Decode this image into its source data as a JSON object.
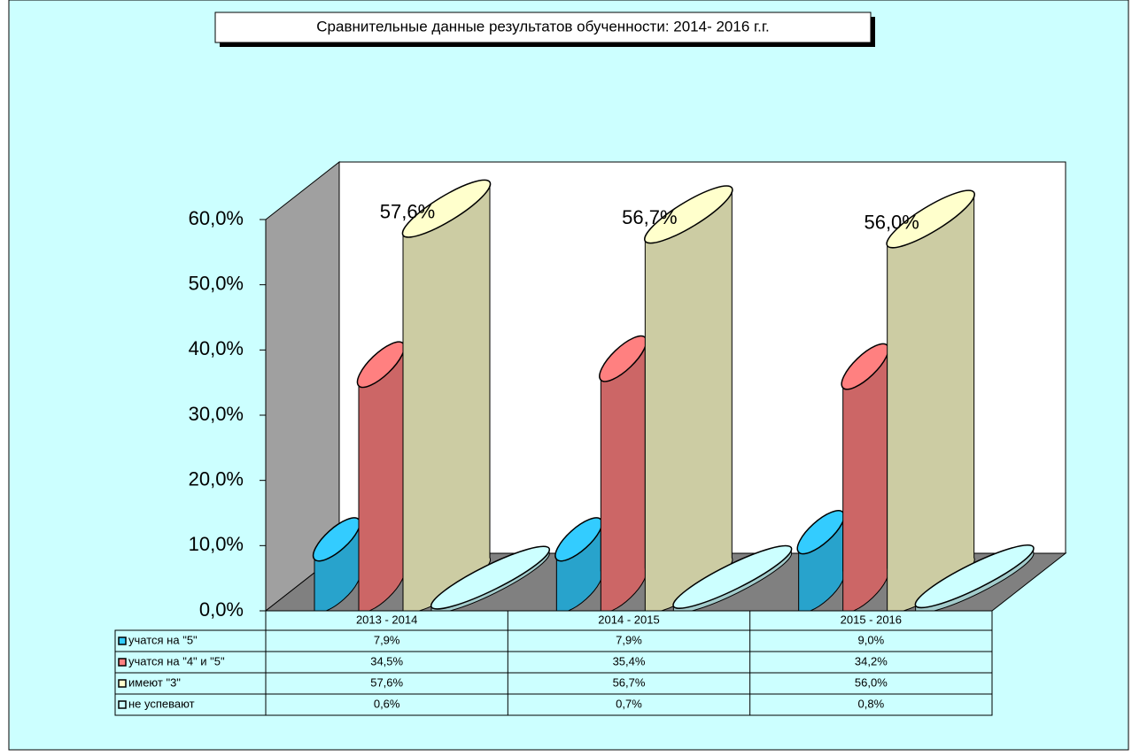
{
  "chart_data": {
    "type": "bar3d",
    "title": "Сравнительные   данные результатов обученности: 2014- 2016 г.г.",
    "categories": [
      "2013 - 2014",
      "2014 - 2015",
      "2015 - 2016"
    ],
    "series": [
      {
        "name": "учатся на \"5\"",
        "color": "#33ccff",
        "values": [
          7.9,
          7.9,
          9.0
        ],
        "value_labels": [
          "7,9%",
          "7,9%",
          "9,0%"
        ]
      },
      {
        "name": "учатся на \"4\" и \"5\"",
        "color": "#ff8080",
        "values": [
          34.5,
          35.4,
          34.2
        ],
        "value_labels": [
          "34,5%",
          "35,4%",
          "34,2%"
        ]
      },
      {
        "name": "имеют \"3\"",
        "color": "#ffffcc",
        "values": [
          57.6,
          56.7,
          56.0
        ],
        "value_labels": [
          "57,6%",
          "56,7%",
          "56,0%"
        ]
      },
      {
        "name": "не успевают",
        "color": "#ccffff",
        "values": [
          0.6,
          0.7,
          0.8
        ],
        "value_labels": [
          "0,6%",
          "0,7%",
          "0,8%"
        ]
      }
    ],
    "ylim": [
      0,
      60
    ],
    "yticks": [
      {
        "value": 0,
        "label": "0,0%"
      },
      {
        "value": 10,
        "label": "10,0%"
      },
      {
        "value": 20,
        "label": "20,0%"
      },
      {
        "value": 30,
        "label": "30,0%"
      },
      {
        "value": 40,
        "label": "40,0%"
      },
      {
        "value": 50,
        "label": "50,0%"
      },
      {
        "value": 60,
        "label": "60,0%"
      }
    ],
    "grid": false
  }
}
